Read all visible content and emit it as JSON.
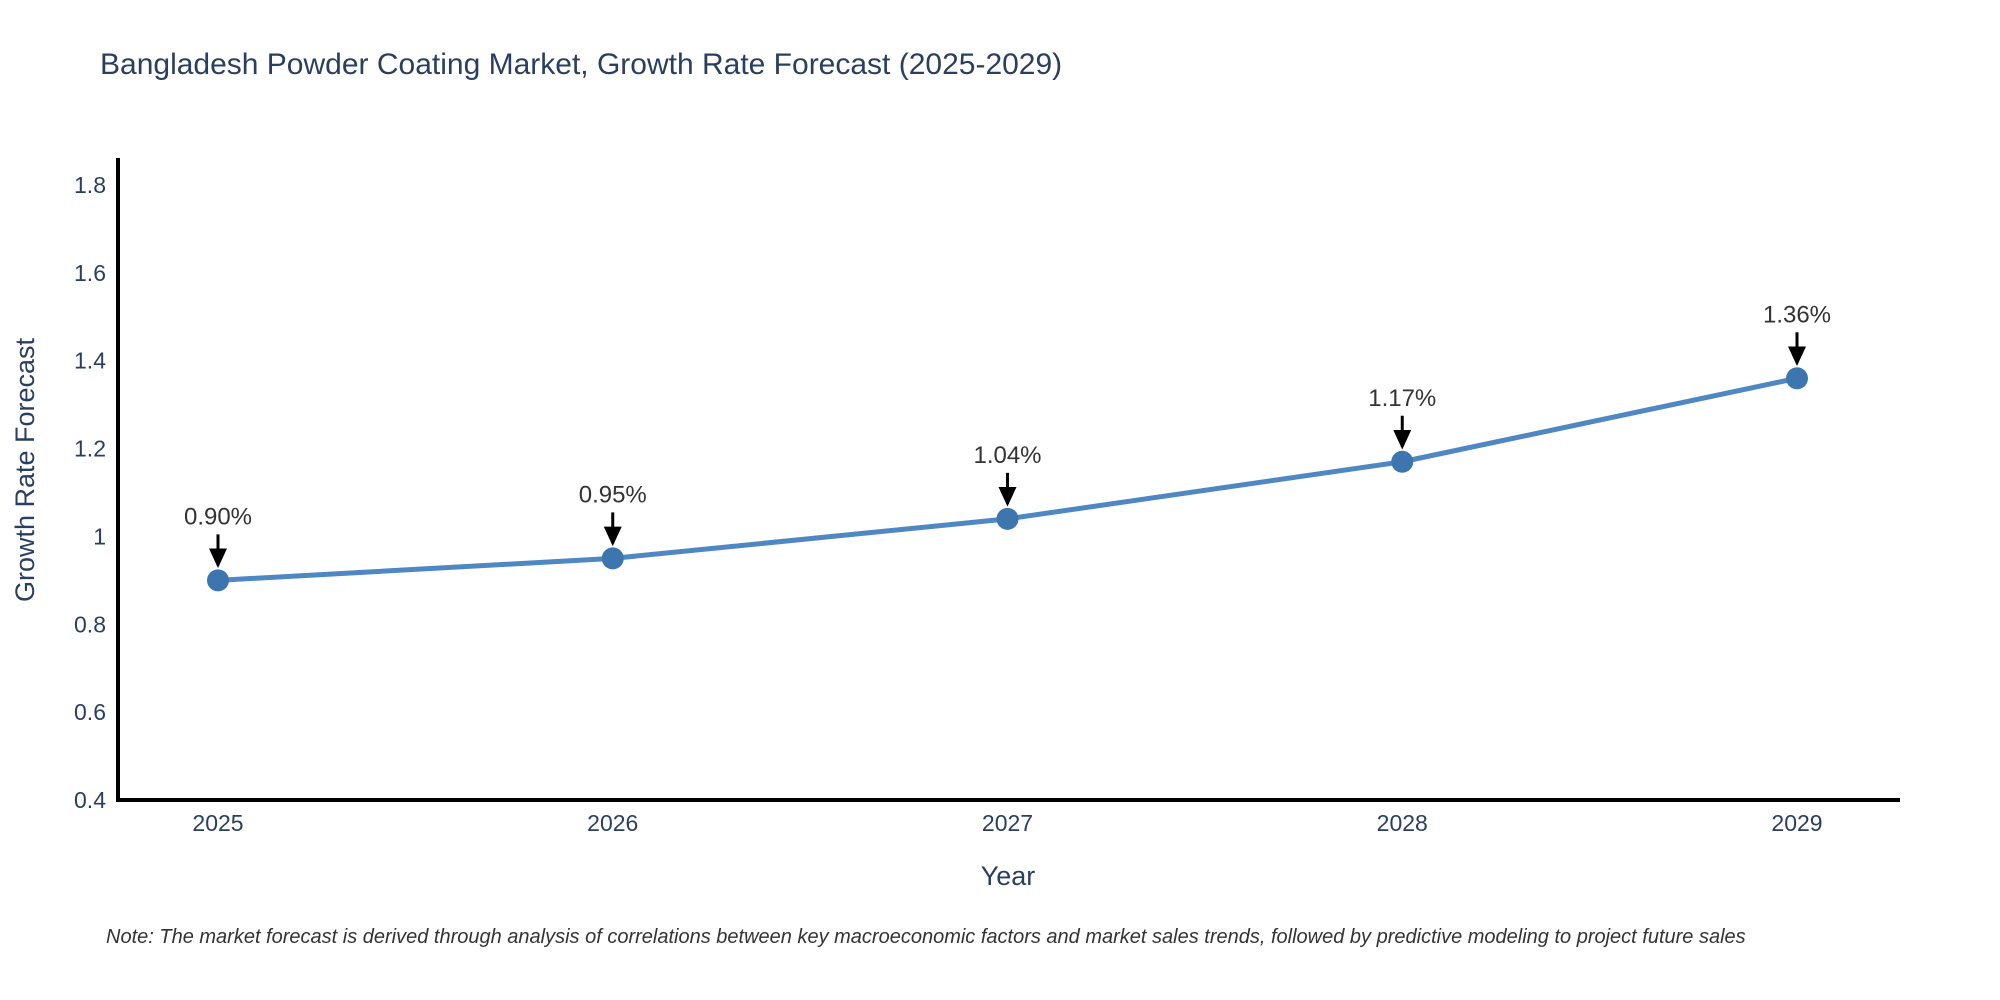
{
  "chart": {
    "title": "Bangladesh Powder Coating Market, Growth Rate Forecast (2025-2029)",
    "note": "Note: The market forecast is derived through analysis of correlations between key macroeconomic factors and market sales trends, followed by predictive modeling to project future sales",
    "colors": {
      "title": "#2a3f5f",
      "tick_label": "#2a3f5f",
      "axis_line": "#000000",
      "series_line": "#4e87c2",
      "marker_fill": "#3d76ae",
      "arrow": "#000000",
      "annotation_text": "#333333",
      "note_text": "#333333",
      "background": "#ffffff"
    }
  },
  "chart_data": {
    "type": "line",
    "title": "Bangladesh Powder Coating Market, Growth Rate Forecast (2025-2029)",
    "xlabel": "Year",
    "ylabel": "Growth Rate Forecast",
    "x": [
      2025,
      2026,
      2027,
      2028,
      2029
    ],
    "series": [
      {
        "name": "Growth Rate Forecast",
        "values": [
          0.9,
          0.95,
          1.04,
          1.17,
          1.36
        ]
      }
    ],
    "point_labels": [
      "0.90%",
      "0.95%",
      "1.04%",
      "1.17%",
      "1.36%"
    ],
    "ylim": [
      0.4,
      1.8
    ],
    "yticks": [
      0.4,
      0.6,
      0.8,
      1,
      1.2,
      1.4,
      1.6,
      1.8
    ],
    "xticks": [
      "2025",
      "2026",
      "2027",
      "2028",
      "2029"
    ],
    "grid": false,
    "legend": false,
    "annotation_style": "label-above-with-down-arrow"
  }
}
